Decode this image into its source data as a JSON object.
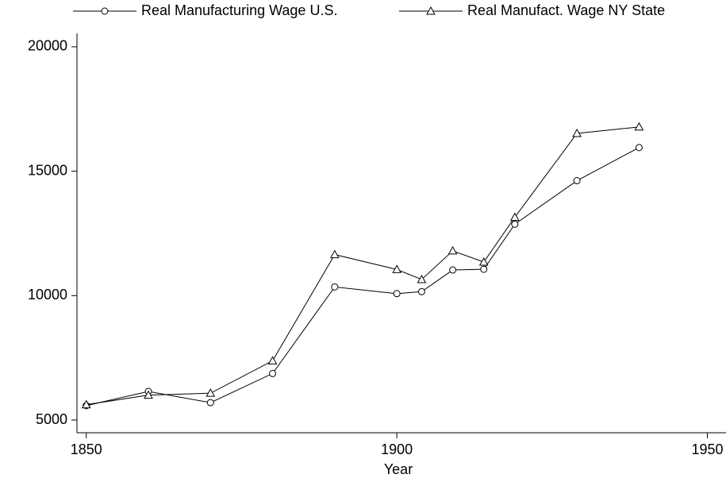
{
  "chart_data": {
    "type": "line",
    "x": [
      1850,
      1860,
      1870,
      1880,
      1890,
      1900,
      1904,
      1909,
      1914,
      1919,
      1929,
      1939
    ],
    "series": [
      {
        "name": "Real Manufacturing Wage U.S.",
        "color": "#000000",
        "marker": "circle",
        "values": [
          5580,
          6150,
          5700,
          6870,
          10350,
          10080,
          10160,
          11030,
          11060,
          12870,
          14620,
          15950
        ]
      },
      {
        "name": "Real Manufact. Wage NY State",
        "color": "#000000",
        "marker": "triangle",
        "values": [
          5620,
          6000,
          6080,
          7380,
          11650,
          11050,
          10650,
          11800,
          11350,
          13150,
          16520,
          16780
        ]
      }
    ],
    "xlabel": "Year",
    "xlim": [
      1848.5,
      1953
    ],
    "xticks": [
      1850,
      1900,
      1950
    ],
    "ylim": [
      4490,
      20540
    ],
    "yticks": [
      5000,
      10000,
      15000,
      20000
    ],
    "grid": false,
    "legend": "top"
  }
}
